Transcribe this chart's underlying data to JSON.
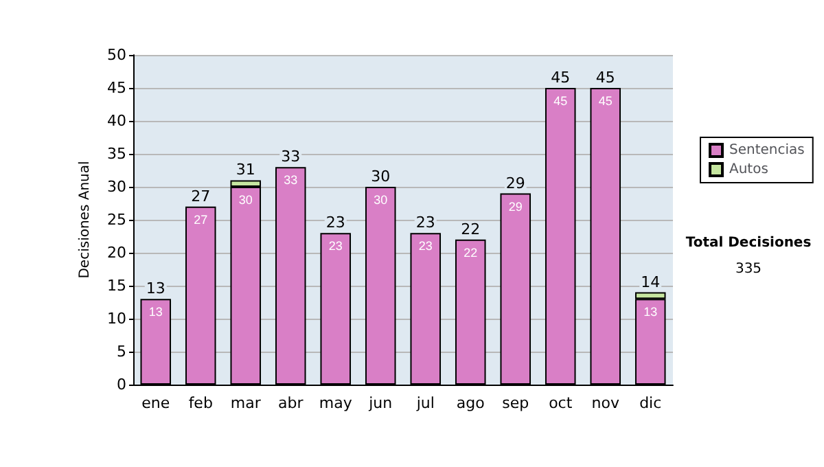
{
  "chart_data": {
    "type": "bar",
    "stacked": true,
    "ylabel": "Decisiones Anual",
    "categories": [
      "ene",
      "feb",
      "mar",
      "abr",
      "may",
      "jun",
      "jul",
      "ago",
      "sep",
      "oct",
      "nov",
      "dic"
    ],
    "series": [
      {
        "name": "Sentencias",
        "color": "#d97fc6",
        "values": [
          13,
          27,
          30,
          33,
          23,
          30,
          23,
          22,
          29,
          45,
          45,
          13
        ],
        "value_labels": [
          "13",
          "27",
          "30",
          "33",
          "23",
          "30",
          "23",
          "22",
          "29",
          "45",
          "45",
          "13"
        ]
      },
      {
        "name": "Autos",
        "color": "#c6e6a0",
        "values": [
          null,
          null,
          1,
          null,
          null,
          null,
          null,
          null,
          null,
          null,
          null,
          1
        ]
      }
    ],
    "totals": [
      "13",
      "27",
      "31",
      "33",
      "23",
      "30",
      "23",
      "22",
      "29",
      "45",
      "45",
      "14"
    ],
    "ylim": [
      0,
      50
    ],
    "yticks": [
      0,
      5,
      10,
      15,
      20,
      25,
      30,
      35,
      40,
      45,
      50
    ],
    "grid": "y",
    "legend": "right",
    "annotations": [
      "Total Decisiones",
      "335"
    ]
  }
}
